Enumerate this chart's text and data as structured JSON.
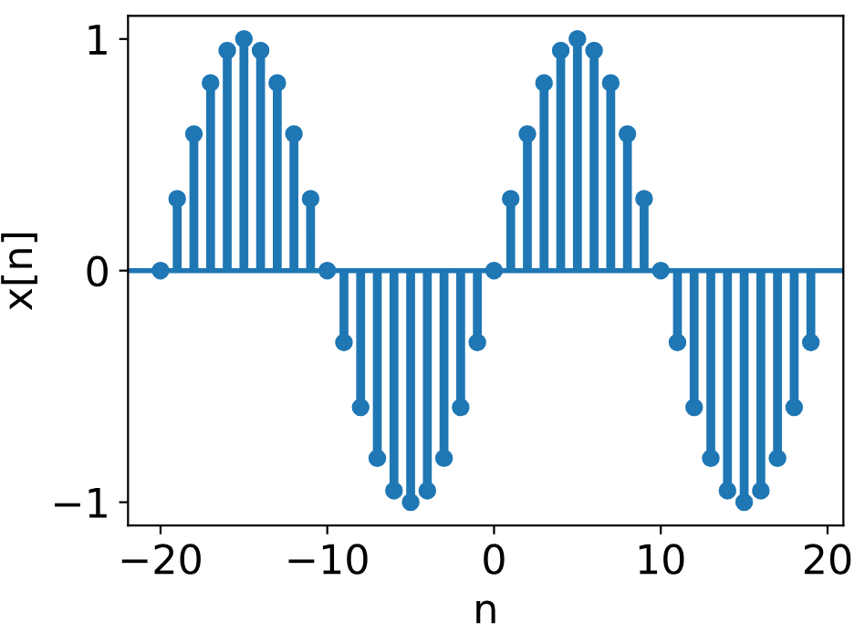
{
  "chart_data": {
    "type": "lollipop",
    "xlabel": "n",
    "ylabel": "x[n]",
    "x": [
      -20,
      -19,
      -18,
      -17,
      -16,
      -15,
      -14,
      -13,
      -12,
      -11,
      -10,
      -9,
      -8,
      -7,
      -6,
      -5,
      -4,
      -3,
      -2,
      -1,
      0,
      1,
      2,
      3,
      4,
      5,
      6,
      7,
      8,
      9,
      10,
      11,
      12,
      13,
      14,
      15,
      16,
      17,
      18,
      19
    ],
    "series": [
      {
        "color": "#1f77b4",
        "values": [
          0,
          0.31,
          0.59,
          0.81,
          0.95,
          1,
          0.95,
          0.81,
          0.59,
          0.31,
          0,
          -0.31,
          -0.59,
          -0.81,
          -0.95,
          -1,
          -0.95,
          -0.81,
          -0.59,
          -0.31,
          0,
          0.31,
          0.59,
          0.81,
          0.95,
          1,
          0.95,
          0.81,
          0.59,
          0.31,
          0,
          -0.31,
          -0.59,
          -0.81,
          -0.95,
          -1,
          -0.95,
          -0.81,
          -0.59,
          -0.31
        ]
      }
    ],
    "xlim": [
      -21.95,
      20.95
    ],
    "ylim": [
      -1.1,
      1.1
    ],
    "xticks": [
      {
        "value": -20,
        "label": "−20"
      },
      {
        "value": -10,
        "label": "−10"
      },
      0,
      10,
      20
    ],
    "ref_lines": [
      {
        "axis": "y",
        "value": 0,
        "color": "#1f77b4"
      }
    ],
    "yticks": [
      {
        "value": -1,
        "label": "−1"
      },
      0,
      1
    ],
    "marker": "circle",
    "grid": false,
    "legend": false
  }
}
